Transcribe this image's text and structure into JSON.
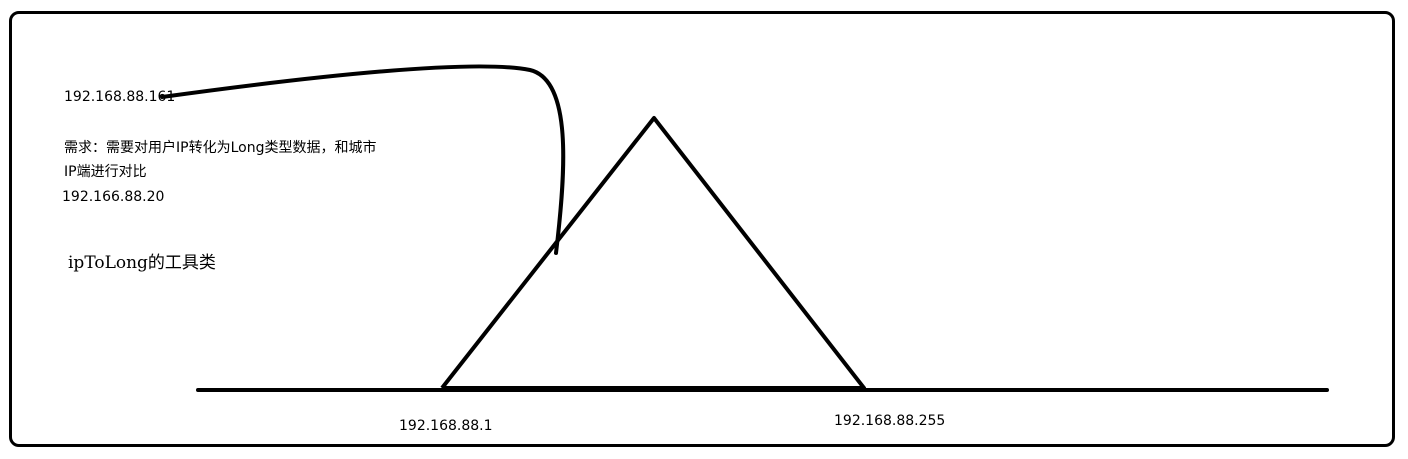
{
  "labels": {
    "source_ip": "192.168.88.161",
    "requirement_line1": "需求：需要对用户IP转化为Long类型数据，和城市",
    "requirement_line2": "IP端进行对比",
    "example_ip": "192.166.88.20",
    "tool_class": "ipToLong的工具类",
    "range_start": "192.168.88.1",
    "range_end": "192.168.88.255"
  },
  "colors": {
    "ink": "#000000",
    "background": "#ffffff"
  }
}
